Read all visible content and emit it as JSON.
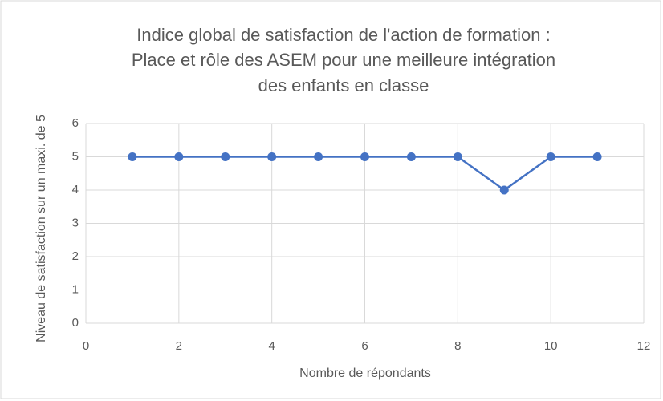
{
  "chart_data": {
    "type": "line",
    "title": [
      "Indice global de satisfaction de l'action de formation :",
      "Place et rôle des ASEM pour une meilleure intégration",
      "des enfants en classe"
    ],
    "x_label": "Nombre de répondants",
    "y_label": "Niveau de satisfaction sur un maxi. de 5",
    "x": [
      1,
      2,
      3,
      4,
      5,
      6,
      7,
      8,
      9,
      10,
      11
    ],
    "values": [
      5,
      5,
      5,
      5,
      5,
      5,
      5,
      5,
      4,
      5,
      5
    ],
    "color": "#4472c4",
    "xlim": [
      0,
      12
    ],
    "xticks": [
      0,
      2,
      4,
      6,
      8,
      10,
      12
    ],
    "ylim": [
      0,
      6
    ],
    "yticks": [
      0,
      1,
      2,
      3,
      4,
      5,
      6
    ],
    "grid": true
  }
}
